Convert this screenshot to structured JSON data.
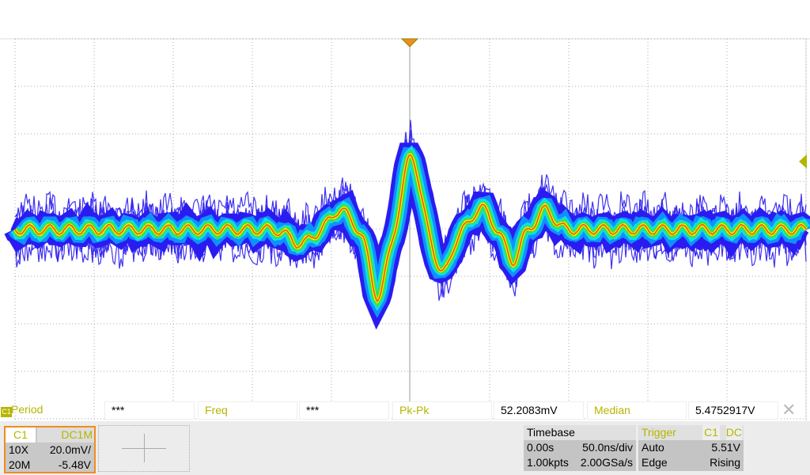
{
  "measurements": [
    {
      "label": "Period",
      "value": "***"
    },
    {
      "label": "Freq",
      "value": "***"
    },
    {
      "label": "Pk-Pk",
      "value": "52.2083mV"
    },
    {
      "label": "Median",
      "value": "5.4752917V"
    }
  ],
  "channel": {
    "name": "C1",
    "coupling": "DC1M",
    "probe": "10X",
    "scale": "20.0mV/",
    "bandwidth": "20M",
    "offset": "-5.48V",
    "badge": "C1"
  },
  "timebase": {
    "title": "Timebase",
    "delay": "0.00s",
    "scale": "50.0ns/div",
    "points": "1.00kpts",
    "rate": "2.00GSa/s"
  },
  "trigger": {
    "title": "Trigger",
    "source": "C1",
    "coupling": "DC",
    "mode": "Auto",
    "level": "5.51V",
    "type": "Edge",
    "slope": "Rising"
  },
  "colors": {
    "marker": "#f08c1e",
    "level": "#b5b500",
    "trace": "#2a1cf0"
  }
}
